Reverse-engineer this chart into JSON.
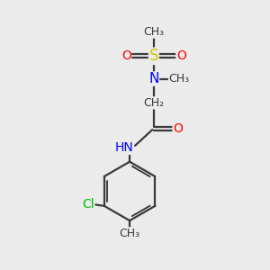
{
  "bg_color": "#ebebeb",
  "bond_color": "#3a3a3a",
  "bond_width": 1.6,
  "atom_colors": {
    "S": "#cccc00",
    "O": "#ff0000",
    "N": "#0000ff",
    "Cl": "#00bb00",
    "C": "#3a3a3a",
    "H": "#808080"
  },
  "font_size": 10,
  "fig_size": [
    3.0,
    3.0
  ],
  "dpi": 100,
  "xlim": [
    0,
    10
  ],
  "ylim": [
    0,
    10
  ]
}
